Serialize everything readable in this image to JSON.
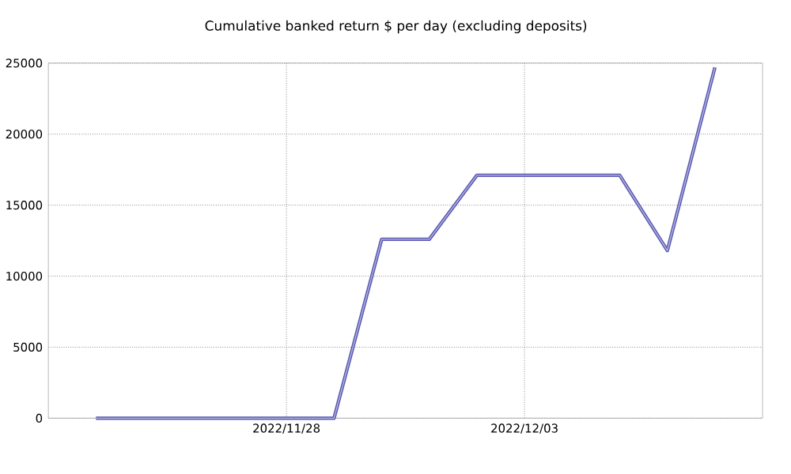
{
  "chart_data": {
    "type": "line",
    "title": "Cumulative banked return $ per day (excluding deposits)",
    "x": [
      "2022-11-24",
      "2022-11-25",
      "2022-11-26",
      "2022-11-27",
      "2022-11-28",
      "2022-11-29",
      "2022-11-30",
      "2022-12-01",
      "2022-12-02",
      "2022-12-03",
      "2022-12-04",
      "2022-12-05",
      "2022-12-06",
      "2022-12-07"
    ],
    "series": [
      {
        "color": "#5a5ab4",
        "values": [
          0,
          0,
          0,
          0,
          0,
          0,
          12600,
          12600,
          17100,
          17100,
          17100,
          17100,
          11800,
          24700
        ]
      }
    ],
    "xlim": [
      "2022-11-23",
      "2022-12-08"
    ],
    "xticks": [
      {
        "value": "2022-11-28",
        "label": "2022/11/28"
      },
      {
        "value": "2022-12-03",
        "label": "2022/12/03"
      }
    ],
    "ylim": [
      0,
      25000
    ],
    "yticks": [
      0,
      5000,
      10000,
      15000,
      20000,
      25000
    ],
    "grid": true,
    "marker": "none",
    "line_style": "solid"
  }
}
